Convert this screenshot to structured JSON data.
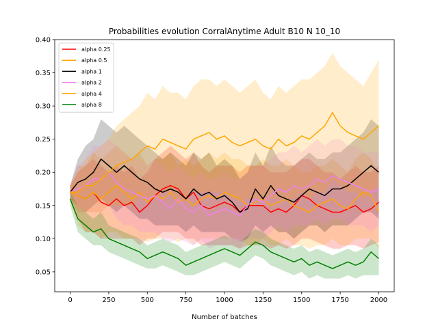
{
  "chart_data": {
    "type": "line",
    "title": "Probabilities evolution CorralAnytime Adult B10 N 10_10",
    "xlabel": "Number of batches",
    "ylabel": "",
    "xlim": [
      -100,
      2100
    ],
    "ylim": [
      0.02,
      0.4
    ],
    "xticks": [
      0,
      250,
      500,
      750,
      1000,
      1250,
      1500,
      1750,
      2000
    ],
    "yticks": [
      0.05,
      0.1,
      0.15,
      0.2,
      0.25,
      0.3,
      0.35,
      0.4
    ],
    "ytick_labels": [
      "0.05",
      "0.10",
      "0.15",
      "0.20",
      "0.25",
      "0.30",
      "0.35",
      "0.40"
    ],
    "grid": false,
    "legend_position": "top-left",
    "shaded_band": "around each series",
    "series": [
      {
        "name": "alpha 0.25",
        "color": "#ff0000",
        "x": [
          0,
          50,
          100,
          150,
          200,
          250,
          300,
          350,
          400,
          450,
          500,
          550,
          600,
          650,
          700,
          750,
          800,
          850,
          900,
          950,
          1000,
          1050,
          1100,
          1150,
          1200,
          1250,
          1300,
          1350,
          1400,
          1450,
          1500,
          1550,
          1600,
          1650,
          1700,
          1750,
          1800,
          1850,
          1900,
          1950,
          2000
        ],
        "y": [
          0.17,
          0.165,
          0.16,
          0.17,
          0.155,
          0.15,
          0.16,
          0.15,
          0.155,
          0.14,
          0.15,
          0.165,
          0.175,
          0.18,
          0.175,
          0.16,
          0.17,
          0.15,
          0.145,
          0.15,
          0.155,
          0.15,
          0.14,
          0.15,
          0.15,
          0.15,
          0.14,
          0.145,
          0.14,
          0.15,
          0.165,
          0.16,
          0.15,
          0.145,
          0.14,
          0.14,
          0.145,
          0.15,
          0.14,
          0.145,
          0.155
        ],
        "band_low": [
          0.16,
          0.13,
          0.11,
          0.11,
          0.1,
          0.1,
          0.1,
          0.1,
          0.1,
          0.09,
          0.1,
          0.1,
          0.11,
          0.11,
          0.11,
          0.1,
          0.1,
          0.09,
          0.09,
          0.09,
          0.09,
          0.09,
          0.085,
          0.09,
          0.09,
          0.09,
          0.085,
          0.09,
          0.085,
          0.09,
          0.1,
          0.1,
          0.095,
          0.09,
          0.085,
          0.085,
          0.09,
          0.09,
          0.085,
          0.09,
          0.095
        ],
        "band_high": [
          0.18,
          0.2,
          0.21,
          0.22,
          0.21,
          0.2,
          0.21,
          0.2,
          0.21,
          0.19,
          0.2,
          0.22,
          0.23,
          0.24,
          0.23,
          0.22,
          0.23,
          0.21,
          0.2,
          0.21,
          0.21,
          0.21,
          0.2,
          0.21,
          0.21,
          0.21,
          0.2,
          0.2,
          0.2,
          0.21,
          0.22,
          0.22,
          0.21,
          0.2,
          0.2,
          0.19,
          0.2,
          0.21,
          0.2,
          0.2,
          0.21
        ]
      },
      {
        "name": "alpha 0.5",
        "color": "#ffa500",
        "x": [
          0,
          50,
          100,
          150,
          200,
          250,
          300,
          350,
          400,
          450,
          500,
          550,
          600,
          650,
          700,
          750,
          800,
          850,
          900,
          950,
          1000,
          1050,
          1100,
          1150,
          1200,
          1250,
          1300,
          1350,
          1400,
          1450,
          1500,
          1550,
          1600,
          1650,
          1700,
          1750,
          1800,
          1850,
          1900,
          1950,
          2000
        ],
        "y": [
          0.17,
          0.165,
          0.16,
          0.17,
          0.16,
          0.17,
          0.18,
          0.17,
          0.16,
          0.17,
          0.155,
          0.165,
          0.16,
          0.17,
          0.155,
          0.16,
          0.15,
          0.16,
          0.165,
          0.16,
          0.17,
          0.165,
          0.16,
          0.15,
          0.155,
          0.16,
          0.15,
          0.155,
          0.16,
          0.15,
          0.145,
          0.14,
          0.15,
          0.155,
          0.16,
          0.15,
          0.145,
          0.16,
          0.17,
          0.165,
          0.14
        ],
        "band_low": [
          0.16,
          0.12,
          0.11,
          0.11,
          0.1,
          0.11,
          0.11,
          0.1,
          0.1,
          0.1,
          0.095,
          0.1,
          0.1,
          0.1,
          0.095,
          0.1,
          0.09,
          0.1,
          0.1,
          0.1,
          0.1,
          0.1,
          0.1,
          0.09,
          0.09,
          0.1,
          0.09,
          0.09,
          0.1,
          0.09,
          0.09,
          0.085,
          0.09,
          0.09,
          0.1,
          0.09,
          0.09,
          0.1,
          0.1,
          0.1,
          0.085
        ],
        "band_high": [
          0.18,
          0.21,
          0.21,
          0.23,
          0.22,
          0.23,
          0.24,
          0.23,
          0.22,
          0.23,
          0.21,
          0.22,
          0.22,
          0.23,
          0.21,
          0.22,
          0.21,
          0.22,
          0.23,
          0.22,
          0.23,
          0.22,
          0.22,
          0.21,
          0.21,
          0.22,
          0.21,
          0.21,
          0.22,
          0.21,
          0.2,
          0.2,
          0.21,
          0.21,
          0.22,
          0.21,
          0.2,
          0.22,
          0.23,
          0.22,
          0.2
        ]
      },
      {
        "name": "alpha 1",
        "color": "#000000",
        "x": [
          0,
          50,
          100,
          150,
          200,
          250,
          300,
          350,
          400,
          450,
          500,
          550,
          600,
          650,
          700,
          750,
          800,
          850,
          900,
          950,
          1000,
          1050,
          1100,
          1150,
          1200,
          1250,
          1300,
          1350,
          1400,
          1450,
          1500,
          1550,
          1600,
          1650,
          1700,
          1750,
          1800,
          1850,
          1900,
          1950,
          2000
        ],
        "y": [
          0.17,
          0.185,
          0.19,
          0.2,
          0.22,
          0.21,
          0.2,
          0.21,
          0.2,
          0.19,
          0.185,
          0.175,
          0.17,
          0.175,
          0.17,
          0.16,
          0.175,
          0.165,
          0.17,
          0.16,
          0.165,
          0.155,
          0.14,
          0.145,
          0.175,
          0.16,
          0.18,
          0.165,
          0.16,
          0.155,
          0.165,
          0.175,
          0.17,
          0.165,
          0.175,
          0.175,
          0.18,
          0.19,
          0.2,
          0.21,
          0.2
        ],
        "band_low": [
          0.16,
          0.15,
          0.14,
          0.15,
          0.16,
          0.15,
          0.14,
          0.15,
          0.14,
          0.13,
          0.13,
          0.12,
          0.12,
          0.12,
          0.12,
          0.11,
          0.12,
          0.11,
          0.11,
          0.11,
          0.11,
          0.1,
          0.095,
          0.1,
          0.12,
          0.11,
          0.12,
          0.11,
          0.11,
          0.1,
          0.11,
          0.12,
          0.12,
          0.11,
          0.12,
          0.12,
          0.12,
          0.13,
          0.14,
          0.14,
          0.13
        ],
        "band_high": [
          0.18,
          0.22,
          0.24,
          0.25,
          0.28,
          0.27,
          0.26,
          0.27,
          0.26,
          0.25,
          0.24,
          0.23,
          0.22,
          0.23,
          0.22,
          0.21,
          0.23,
          0.22,
          0.23,
          0.21,
          0.22,
          0.21,
          0.19,
          0.2,
          0.23,
          0.21,
          0.24,
          0.22,
          0.21,
          0.21,
          0.22,
          0.23,
          0.22,
          0.22,
          0.23,
          0.23,
          0.24,
          0.25,
          0.26,
          0.28,
          0.27
        ]
      },
      {
        "name": "alpha 2",
        "color": "#ee82ee",
        "x": [
          0,
          50,
          100,
          150,
          200,
          250,
          300,
          350,
          400,
          450,
          500,
          550,
          600,
          650,
          700,
          750,
          800,
          850,
          900,
          950,
          1000,
          1050,
          1100,
          1150,
          1200,
          1250,
          1300,
          1350,
          1400,
          1450,
          1500,
          1550,
          1600,
          1650,
          1700,
          1750,
          1800,
          1850,
          1900,
          1950,
          2000
        ],
        "y": [
          0.17,
          0.175,
          0.18,
          0.19,
          0.19,
          0.2,
          0.185,
          0.175,
          0.17,
          0.165,
          0.16,
          0.165,
          0.155,
          0.145,
          0.16,
          0.145,
          0.14,
          0.15,
          0.135,
          0.14,
          0.145,
          0.14,
          0.135,
          0.15,
          0.16,
          0.155,
          0.165,
          0.175,
          0.17,
          0.18,
          0.175,
          0.18,
          0.19,
          0.185,
          0.195,
          0.19,
          0.185,
          0.18,
          0.175,
          0.17,
          0.175
        ],
        "band_low": [
          0.16,
          0.14,
          0.14,
          0.14,
          0.14,
          0.15,
          0.13,
          0.12,
          0.12,
          0.11,
          0.11,
          0.11,
          0.1,
          0.095,
          0.1,
          0.095,
          0.09,
          0.1,
          0.085,
          0.09,
          0.09,
          0.09,
          0.085,
          0.1,
          0.1,
          0.1,
          0.11,
          0.12,
          0.11,
          0.12,
          0.12,
          0.12,
          0.13,
          0.12,
          0.13,
          0.13,
          0.12,
          0.12,
          0.12,
          0.11,
          0.12
        ],
        "band_high": [
          0.18,
          0.21,
          0.22,
          0.24,
          0.24,
          0.25,
          0.24,
          0.23,
          0.22,
          0.22,
          0.21,
          0.22,
          0.21,
          0.2,
          0.21,
          0.2,
          0.19,
          0.2,
          0.19,
          0.19,
          0.2,
          0.19,
          0.19,
          0.2,
          0.21,
          0.21,
          0.22,
          0.23,
          0.23,
          0.24,
          0.23,
          0.24,
          0.25,
          0.24,
          0.25,
          0.25,
          0.24,
          0.24,
          0.23,
          0.23,
          0.23
        ]
      },
      {
        "name": "alpha 4",
        "color": "#ffa500",
        "x": [
          0,
          50,
          100,
          150,
          200,
          250,
          300,
          350,
          400,
          450,
          500,
          550,
          600,
          650,
          700,
          750,
          800,
          850,
          900,
          950,
          1000,
          1050,
          1100,
          1150,
          1200,
          1250,
          1300,
          1350,
          1400,
          1450,
          1500,
          1550,
          1600,
          1650,
          1700,
          1750,
          1800,
          1850,
          1900,
          1950,
          2000
        ],
        "y": [
          0.17,
          0.17,
          0.18,
          0.18,
          0.19,
          0.2,
          0.21,
          0.215,
          0.22,
          0.23,
          0.24,
          0.235,
          0.25,
          0.245,
          0.24,
          0.235,
          0.25,
          0.255,
          0.26,
          0.25,
          0.255,
          0.245,
          0.24,
          0.245,
          0.25,
          0.24,
          0.235,
          0.25,
          0.24,
          0.245,
          0.255,
          0.25,
          0.26,
          0.27,
          0.29,
          0.27,
          0.26,
          0.255,
          0.25,
          0.26,
          0.27
        ],
        "band_low": [
          0.16,
          0.14,
          0.14,
          0.14,
          0.14,
          0.15,
          0.15,
          0.15,
          0.15,
          0.16,
          0.16,
          0.16,
          0.17,
          0.17,
          0.16,
          0.16,
          0.17,
          0.17,
          0.17,
          0.17,
          0.17,
          0.16,
          0.16,
          0.16,
          0.16,
          0.16,
          0.16,
          0.16,
          0.16,
          0.16,
          0.17,
          0.16,
          0.17,
          0.17,
          0.19,
          0.18,
          0.17,
          0.17,
          0.16,
          0.17,
          0.18
        ],
        "band_high": [
          0.18,
          0.2,
          0.22,
          0.23,
          0.24,
          0.25,
          0.27,
          0.28,
          0.29,
          0.3,
          0.32,
          0.31,
          0.33,
          0.32,
          0.32,
          0.31,
          0.33,
          0.34,
          0.34,
          0.33,
          0.34,
          0.33,
          0.32,
          0.33,
          0.34,
          0.32,
          0.31,
          0.33,
          0.32,
          0.33,
          0.34,
          0.34,
          0.35,
          0.36,
          0.38,
          0.36,
          0.35,
          0.34,
          0.33,
          0.35,
          0.37
        ]
      },
      {
        "name": "alpha 8",
        "color": "#008000",
        "x": [
          0,
          50,
          100,
          150,
          200,
          250,
          300,
          350,
          400,
          450,
          500,
          550,
          600,
          650,
          700,
          750,
          800,
          850,
          900,
          950,
          1000,
          1050,
          1100,
          1150,
          1200,
          1250,
          1300,
          1350,
          1400,
          1450,
          1500,
          1550,
          1600,
          1650,
          1700,
          1750,
          1800,
          1850,
          1900,
          1950,
          2000
        ],
        "y": [
          0.16,
          0.13,
          0.12,
          0.11,
          0.115,
          0.1,
          0.095,
          0.09,
          0.085,
          0.08,
          0.07,
          0.075,
          0.08,
          0.075,
          0.07,
          0.06,
          0.065,
          0.07,
          0.075,
          0.08,
          0.085,
          0.08,
          0.075,
          0.085,
          0.095,
          0.09,
          0.08,
          0.075,
          0.07,
          0.065,
          0.07,
          0.06,
          0.065,
          0.06,
          0.055,
          0.06,
          0.065,
          0.06,
          0.065,
          0.08,
          0.07
        ],
        "band_low": [
          0.15,
          0.11,
          0.1,
          0.09,
          0.09,
          0.08,
          0.075,
          0.07,
          0.065,
          0.06,
          0.055,
          0.055,
          0.06,
          0.055,
          0.05,
          0.045,
          0.045,
          0.05,
          0.055,
          0.06,
          0.065,
          0.06,
          0.055,
          0.065,
          0.075,
          0.07,
          0.06,
          0.055,
          0.05,
          0.045,
          0.05,
          0.04,
          0.045,
          0.04,
          0.04,
          0.04,
          0.045,
          0.04,
          0.045,
          0.045,
          0.045
        ],
        "band_high": [
          0.17,
          0.15,
          0.14,
          0.13,
          0.14,
          0.12,
          0.115,
          0.11,
          0.105,
          0.1,
          0.09,
          0.095,
          0.1,
          0.095,
          0.09,
          0.08,
          0.085,
          0.09,
          0.095,
          0.1,
          0.105,
          0.1,
          0.095,
          0.105,
          0.115,
          0.11,
          0.1,
          0.095,
          0.09,
          0.085,
          0.09,
          0.08,
          0.085,
          0.08,
          0.075,
          0.08,
          0.085,
          0.08,
          0.085,
          0.1,
          0.09
        ]
      }
    ]
  }
}
